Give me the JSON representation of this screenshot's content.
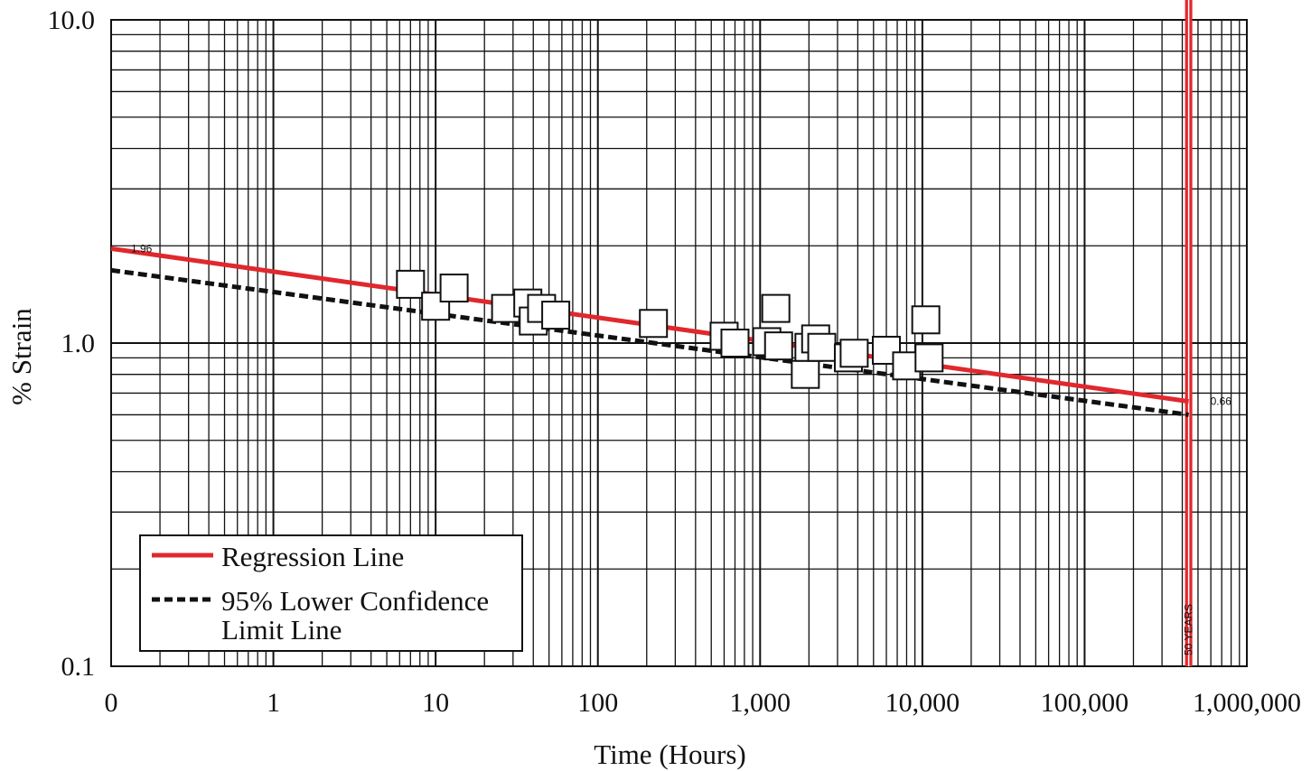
{
  "chart_data": {
    "type": "scatter",
    "xlabel": "Time (Hours)",
    "ylabel": "% Strain",
    "x_scale": "log",
    "y_scale": "log",
    "xlim": [
      0.1,
      1000000
    ],
    "ylim": [
      0.1,
      10
    ],
    "x_tick_labels": [
      {
        "value": 0.1,
        "label": "0"
      },
      {
        "value": 1,
        "label": "1"
      },
      {
        "value": 10,
        "label": "10"
      },
      {
        "value": 100,
        "label": "100"
      },
      {
        "value": 1000,
        "label": "1,000"
      },
      {
        "value": 10000,
        "label": "10,000"
      },
      {
        "value": 100000,
        "label": "100,000"
      },
      {
        "value": 1000000,
        "label": "1,000,000"
      }
    ],
    "y_tick_labels": [
      {
        "value": 0.1,
        "label": "0.1"
      },
      {
        "value": 1,
        "label": "1.0"
      },
      {
        "value": 10,
        "label": "10.0"
      }
    ],
    "grid": true,
    "legend_position": "bottom-left",
    "series": [
      {
        "name": "Regression Line",
        "kind": "line",
        "color": "#e0282d",
        "points": [
          [
            0.1,
            1.96
          ],
          [
            438000,
            0.66
          ]
        ]
      },
      {
        "name": "95% Lower Confidence Limit Line",
        "kind": "dashed-line",
        "color": "#111111",
        "points": [
          [
            0.1,
            1.68
          ],
          [
            438000,
            0.6
          ]
        ]
      },
      {
        "kind": "scatter",
        "marker": "square",
        "points": [
          [
            7,
            1.52
          ],
          [
            10,
            1.3
          ],
          [
            13,
            1.48
          ],
          [
            27,
            1.28
          ],
          [
            37,
            1.33
          ],
          [
            40,
            1.17
          ],
          [
            45,
            1.28
          ],
          [
            55,
            1.22
          ],
          [
            220,
            1.15
          ],
          [
            600,
            1.05
          ],
          [
            700,
            1.0
          ],
          [
            1100,
            1.01
          ],
          [
            1250,
            1.28
          ],
          [
            1300,
            0.98
          ],
          [
            1900,
            0.8
          ],
          [
            2000,
            0.97
          ],
          [
            2200,
            1.03
          ],
          [
            2400,
            0.97
          ],
          [
            3500,
            0.9
          ],
          [
            3800,
            0.93
          ],
          [
            6000,
            0.95
          ],
          [
            8000,
            0.85
          ],
          [
            10500,
            1.18
          ],
          [
            11000,
            0.9
          ]
        ]
      }
    ],
    "legend": {
      "items": [
        {
          "label": "Regression Line",
          "line": "solid-red"
        },
        {
          "label": "95% Lower Confidence",
          "label_cont": "Limit Line",
          "line": "dashed-black"
        }
      ]
    },
    "annotations": {
      "start_value": "1.96",
      "end_value": "0.66",
      "design_life_label": "50 YEARS",
      "design_life_hours": 438000
    }
  }
}
